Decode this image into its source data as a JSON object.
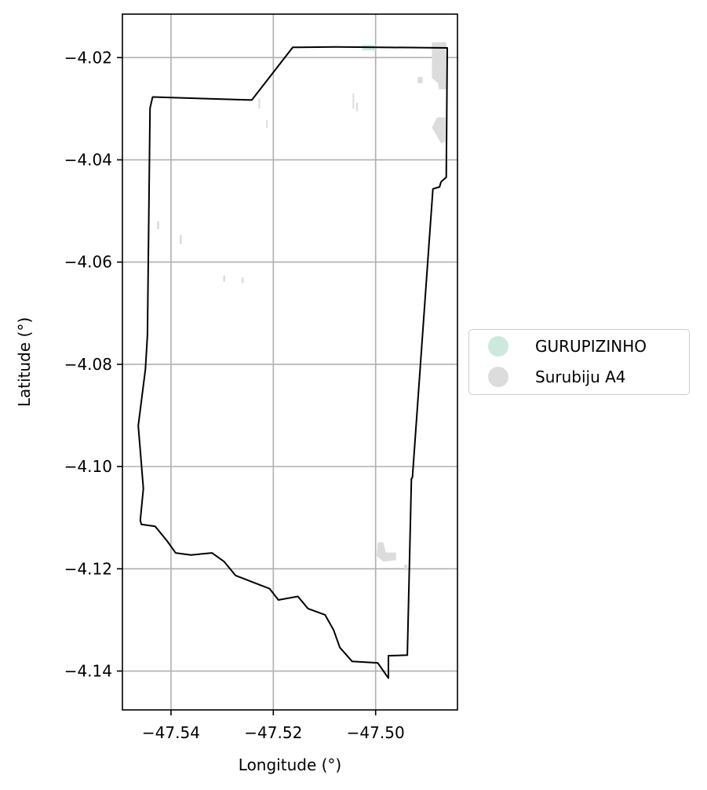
{
  "chart_data": {
    "type": "map",
    "xlabel": "Longitude (°)",
    "ylabel": "Latitude (°)",
    "xlim": [
      -47.5495,
      -47.484
    ],
    "ylim": [
      -4.1476,
      -4.0115
    ],
    "xticks": [
      -47.54,
      -47.52,
      -47.5
    ],
    "xtick_labels": [
      "−47.54",
      "−47.52",
      "−47.50"
    ],
    "yticks": [
      -4.02,
      -4.04,
      -4.06,
      -4.08,
      -4.1,
      -4.12,
      -4.14
    ],
    "ytick_labels": [
      "−4.02",
      "−4.04",
      "−4.06",
      "−4.08",
      "−4.10",
      "−4.12",
      "−4.14"
    ],
    "grid": true,
    "boundary": {
      "stroke": "#000000",
      "lon_lat": [
        [
          -47.5436,
          -4.0277
        ],
        [
          -47.5242,
          -4.0283
        ],
        [
          -47.5162,
          -4.018
        ],
        [
          -47.5078,
          -4.0179
        ],
        [
          -47.486,
          -4.0181
        ],
        [
          -47.4862,
          -4.0434
        ],
        [
          -47.4872,
          -4.0443
        ],
        [
          -47.4875,
          -4.0453
        ],
        [
          -47.4888,
          -4.0457
        ],
        [
          -47.4928,
          -4.1021
        ],
        [
          -47.493,
          -4.1024
        ],
        [
          -47.4938,
          -4.1369
        ],
        [
          -47.4975,
          -4.137
        ],
        [
          -47.4975,
          -4.1414
        ],
        [
          -47.4996,
          -4.1384
        ],
        [
          -47.5046,
          -4.1381
        ],
        [
          -47.507,
          -4.1354
        ],
        [
          -47.5082,
          -4.132
        ],
        [
          -47.5099,
          -4.129
        ],
        [
          -47.5132,
          -4.1278
        ],
        [
          -47.5152,
          -4.1254
        ],
        [
          -47.519,
          -4.1261
        ],
        [
          -47.5207,
          -4.1239
        ],
        [
          -47.5274,
          -4.1213
        ],
        [
          -47.5296,
          -4.1186
        ],
        [
          -47.532,
          -4.1169
        ],
        [
          -47.5361,
          -4.1173
        ],
        [
          -47.5391,
          -4.1169
        ],
        [
          -47.5408,
          -4.1145
        ],
        [
          -47.5431,
          -4.1117
        ],
        [
          -47.5458,
          -4.1113
        ],
        [
          -47.546,
          -4.1105
        ],
        [
          -47.5454,
          -4.1043
        ],
        [
          -47.5464,
          -4.092
        ],
        [
          -47.545,
          -4.081
        ],
        [
          -47.5446,
          -4.0743
        ],
        [
          -47.5441,
          -4.0299
        ],
        [
          -47.5436,
          -4.0277
        ]
      ]
    },
    "legend": {
      "placement": "right",
      "entries": [
        {
          "name": "GURUPIZINHO",
          "color": "#cde9dc"
        },
        {
          "name": "Surubiju A4",
          "color": "#dcdcdc"
        }
      ]
    },
    "regions": [
      {
        "series": "GURUPIZINHO",
        "color": "#cde9dc",
        "lon_lat": [
          [
            -47.5026,
            -4.0175
          ],
          [
            -47.5,
            -4.0175
          ],
          [
            -47.5,
            -4.0186
          ],
          [
            -47.5026,
            -4.0186
          ]
        ]
      },
      {
        "series": "Surubiju A4",
        "color": "#dcdcdc",
        "lon_lat": [
          [
            -47.489,
            -4.017
          ],
          [
            -47.4862,
            -4.017
          ],
          [
            -47.4862,
            -4.0262
          ],
          [
            -47.4876,
            -4.0262
          ],
          [
            -47.4878,
            -4.025
          ],
          [
            -47.489,
            -4.024
          ]
        ]
      },
      {
        "series": "Surubiju A4",
        "color": "#dcdcdc",
        "lon_lat": [
          [
            -47.488,
            -4.0317
          ],
          [
            -47.4864,
            -4.0317
          ],
          [
            -47.4864,
            -4.0365
          ],
          [
            -47.4872,
            -4.0368
          ],
          [
            -47.4885,
            -4.0345
          ],
          [
            -47.489,
            -4.0337
          ]
        ]
      },
      {
        "series": "Surubiju A4",
        "color": "#dcdcdc",
        "lon_lat": [
          [
            -47.4996,
            -4.1148
          ],
          [
            -47.4985,
            -4.1148
          ],
          [
            -47.498,
            -4.1168
          ],
          [
            -47.496,
            -4.1168
          ],
          [
            -47.496,
            -4.1183
          ],
          [
            -47.4985,
            -4.1186
          ],
          [
            -47.4998,
            -4.1175
          ]
        ]
      },
      {
        "series": "Surubiju A4",
        "color": "#dcdcdc",
        "lon_lat": [
          [
            -47.4918,
            -4.0238
          ],
          [
            -47.4908,
            -4.0238
          ],
          [
            -47.4908,
            -4.025
          ],
          [
            -47.4918,
            -4.025
          ]
        ]
      },
      {
        "series": "Surubiju A4",
        "color": "#dcdcdc",
        "lon_lat": [
          [
            -47.5045,
            -4.027
          ],
          [
            -47.5042,
            -4.027
          ],
          [
            -47.5042,
            -4.03
          ],
          [
            -47.5045,
            -4.03
          ]
        ]
      },
      {
        "series": "Surubiju A4",
        "color": "#dcdcdc",
        "lon_lat": [
          [
            -47.5038,
            -4.0288
          ],
          [
            -47.5035,
            -4.0288
          ],
          [
            -47.5035,
            -4.0305
          ],
          [
            -47.5038,
            -4.0305
          ]
        ]
      },
      {
        "series": "Surubiju A4",
        "color": "#dcdcdc",
        "lon_lat": [
          [
            -47.5229,
            -4.028
          ],
          [
            -47.5226,
            -4.028
          ],
          [
            -47.5226,
            -4.03
          ],
          [
            -47.5229,
            -4.03
          ]
        ]
      },
      {
        "series": "Surubiju A4",
        "color": "#dcdcdc",
        "lon_lat": [
          [
            -47.5214,
            -4.0322
          ],
          [
            -47.5211,
            -4.0322
          ],
          [
            -47.5211,
            -4.0338
          ],
          [
            -47.5214,
            -4.0338
          ]
        ]
      },
      {
        "series": "Surubiju A4",
        "color": "#dcdcdc",
        "lon_lat": [
          [
            -47.5427,
            -4.052
          ],
          [
            -47.5423,
            -4.052
          ],
          [
            -47.5423,
            -4.0536
          ],
          [
            -47.5427,
            -4.0536
          ]
        ]
      },
      {
        "series": "Surubiju A4",
        "color": "#dcdcdc",
        "lon_lat": [
          [
            -47.5383,
            -4.0547
          ],
          [
            -47.5379,
            -4.0547
          ],
          [
            -47.5379,
            -4.0565
          ],
          [
            -47.5383,
            -4.0565
          ]
        ]
      },
      {
        "series": "Surubiju A4",
        "color": "#dcdcdc",
        "lon_lat": [
          [
            -47.5298,
            -4.0626
          ],
          [
            -47.5294,
            -4.0626
          ],
          [
            -47.5294,
            -4.0638
          ],
          [
            -47.5298,
            -4.0638
          ]
        ]
      },
      {
        "series": "Surubiju A4",
        "color": "#dcdcdc",
        "lon_lat": [
          [
            -47.5262,
            -4.063
          ],
          [
            -47.5258,
            -4.063
          ],
          [
            -47.5258,
            -4.0641
          ],
          [
            -47.5262,
            -4.0641
          ]
        ]
      },
      {
        "series": "Surubiju A4",
        "color": "#dcdcdc",
        "lon_lat": [
          [
            -47.4944,
            -4.1192
          ],
          [
            -47.4938,
            -4.1192
          ],
          [
            -47.4938,
            -4.1203
          ],
          [
            -47.4944,
            -4.1203
          ]
        ]
      }
    ]
  }
}
